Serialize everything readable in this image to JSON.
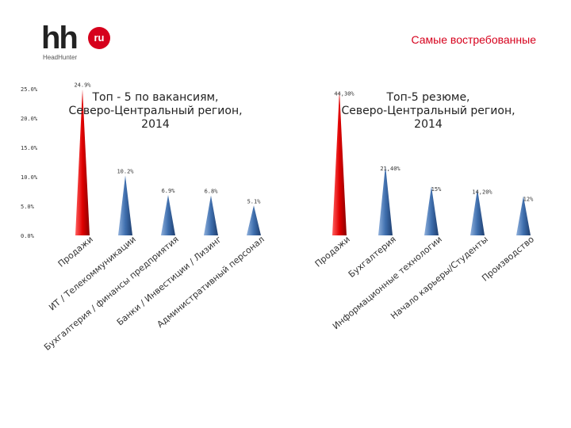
{
  "logo": {
    "hh": "hh",
    "ru": "ru",
    "sub": "HeadHunter"
  },
  "header": {
    "title": "Самые востребованные"
  },
  "colors": {
    "highlight": "#e00000",
    "bar": "#3f6fae"
  },
  "chart_data": [
    {
      "type": "bar",
      "title_lines": [
        "Топ - 5 по вакансиям,",
        "Северо-Центральный регион,",
        "2014"
      ],
      "categories": [
        "Продажи",
        "ИТ / Телекоммуникации",
        "Бухгалтерия / финансы предприятия",
        "Банки / Инвестиции / Лизинг",
        "Административный персонал"
      ],
      "values": [
        24.9,
        10.2,
        6.9,
        6.8,
        5.1
      ],
      "value_labels": [
        "24.9%",
        "10.2%",
        "6.9%",
        "6.8%",
        "5.1%"
      ],
      "yticks": [
        "0.0%",
        "5.0%",
        "10.0%",
        "15.0%",
        "20.0%",
        "25.0%"
      ],
      "ylim": [
        0,
        25
      ],
      "highlight_index": 0
    },
    {
      "type": "bar",
      "title_lines": [
        "Топ-5 резюме,",
        "Северо-Центральный регион,",
        "2014"
      ],
      "categories": [
        "Продажи",
        "Бухгалтерия",
        "Информационные технологии",
        "Начало карьеры/Студенты",
        "Производство"
      ],
      "values": [
        44.3,
        21.4,
        15,
        14.2,
        12
      ],
      "value_labels": [
        "44,30%",
        "21,40%",
        "15%",
        "14,20%",
        "12%"
      ],
      "ylim": [
        0,
        50
      ],
      "highlight_index": 0
    }
  ]
}
